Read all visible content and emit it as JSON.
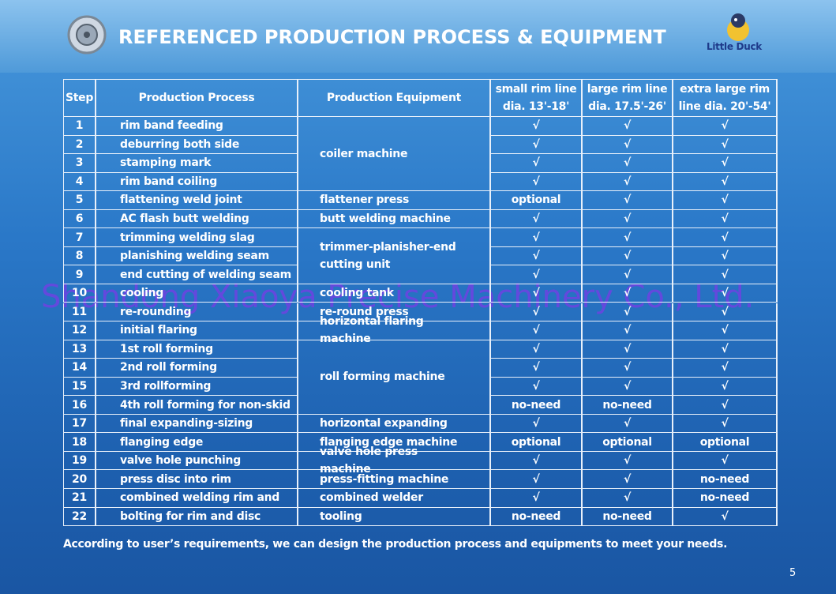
{
  "header": {
    "title": "REFERENCED PRODUCTION PROCESS & EQUIPMENT",
    "logo": "Little Duck"
  },
  "table": {
    "columns": [
      "Step",
      "Production Process",
      "Production Equipment",
      "small rim line dia. 13'-18'",
      "large rim line dia. 17.5'-26'",
      "extra large rim line dia. 20'-54'"
    ],
    "rows": [
      {
        "step": "1",
        "process": "rim band feeding",
        "equipment": "coiler machine",
        "small": "√",
        "large": "√",
        "extra": "√"
      },
      {
        "step": "2",
        "process": "deburring both side",
        "equipment": null,
        "small": "√",
        "large": "√",
        "extra": "√"
      },
      {
        "step": "3",
        "process": "stamping mark",
        "equipment": null,
        "small": "√",
        "large": "√",
        "extra": "√"
      },
      {
        "step": "4",
        "process": "rim band coiling",
        "equipment": null,
        "small": "√",
        "large": "√",
        "extra": "√"
      },
      {
        "step": "5",
        "process": "flattening weld joint",
        "equipment": "flattener press",
        "small": "optional",
        "large": "√",
        "extra": "√"
      },
      {
        "step": "6",
        "process": "AC flash butt welding",
        "equipment": "butt welding machine",
        "small": "√",
        "large": "√",
        "extra": "√"
      },
      {
        "step": "7",
        "process": "trimming welding slag",
        "equipment": "trimmer-planisher-end cutting unit",
        "small": "√",
        "large": "√",
        "extra": "√"
      },
      {
        "step": "8",
        "process": "planishing welding seam",
        "equipment": null,
        "small": "√",
        "large": "√",
        "extra": "√"
      },
      {
        "step": "9",
        "process": "end cutting of welding seam",
        "equipment": null,
        "small": "√",
        "large": "√",
        "extra": "√"
      },
      {
        "step": "10",
        "process": "cooling",
        "equipment": "cooling tank",
        "small": "√",
        "large": "√",
        "extra": "√"
      },
      {
        "step": "11",
        "process": "re-rounding",
        "equipment": "re-round press",
        "small": "√",
        "large": "√",
        "extra": "√"
      },
      {
        "step": "12",
        "process": "initial flaring",
        "equipment": "horizontal flaring machine",
        "small": "√",
        "large": "√",
        "extra": "√"
      },
      {
        "step": "13",
        "process": "1st roll forming",
        "equipment": "roll forming machine",
        "small": "√",
        "large": "√",
        "extra": "√"
      },
      {
        "step": "14",
        "process": "2nd roll forming",
        "equipment": null,
        "small": "√",
        "large": "√",
        "extra": "√"
      },
      {
        "step": "15",
        "process": "3rd rollforming",
        "equipment": null,
        "small": "√",
        "large": "√",
        "extra": "√"
      },
      {
        "step": "16",
        "process": "4th roll forming for non-skid",
        "equipment": null,
        "small": "no-need",
        "large": "no-need",
        "extra": "√"
      },
      {
        "step": "17",
        "process": "final expanding-sizing",
        "equipment": "horizontal expanding",
        "small": "√",
        "large": "√",
        "extra": "√"
      },
      {
        "step": "18",
        "process": "flanging edge",
        "equipment": "flanging edge machine",
        "small": "optional",
        "large": "optional",
        "extra": "optional"
      },
      {
        "step": "19",
        "process": "valve hole punching",
        "equipment": "valve hole press machine",
        "small": "√",
        "large": "√",
        "extra": "√"
      },
      {
        "step": "20",
        "process": "press disc into rim",
        "equipment": "press-fitting machine",
        "small": "√",
        "large": "√",
        "extra": "no-need"
      },
      {
        "step": "21",
        "process": "combined welding rim and",
        "equipment": "combined welder",
        "small": "√",
        "large": "√",
        "extra": "no-need"
      },
      {
        "step": "22",
        "process": "bolting for rim and disc",
        "equipment": "tooling",
        "small": "no-need",
        "large": "no-need",
        "extra": "√"
      }
    ]
  },
  "footer": {
    "note": "According to user’s requirements, we can design the production process and equipments to meet your needs.",
    "page": "5"
  },
  "watermark": "Shandong Xiaoya Precise Machinery Co., Ltd."
}
